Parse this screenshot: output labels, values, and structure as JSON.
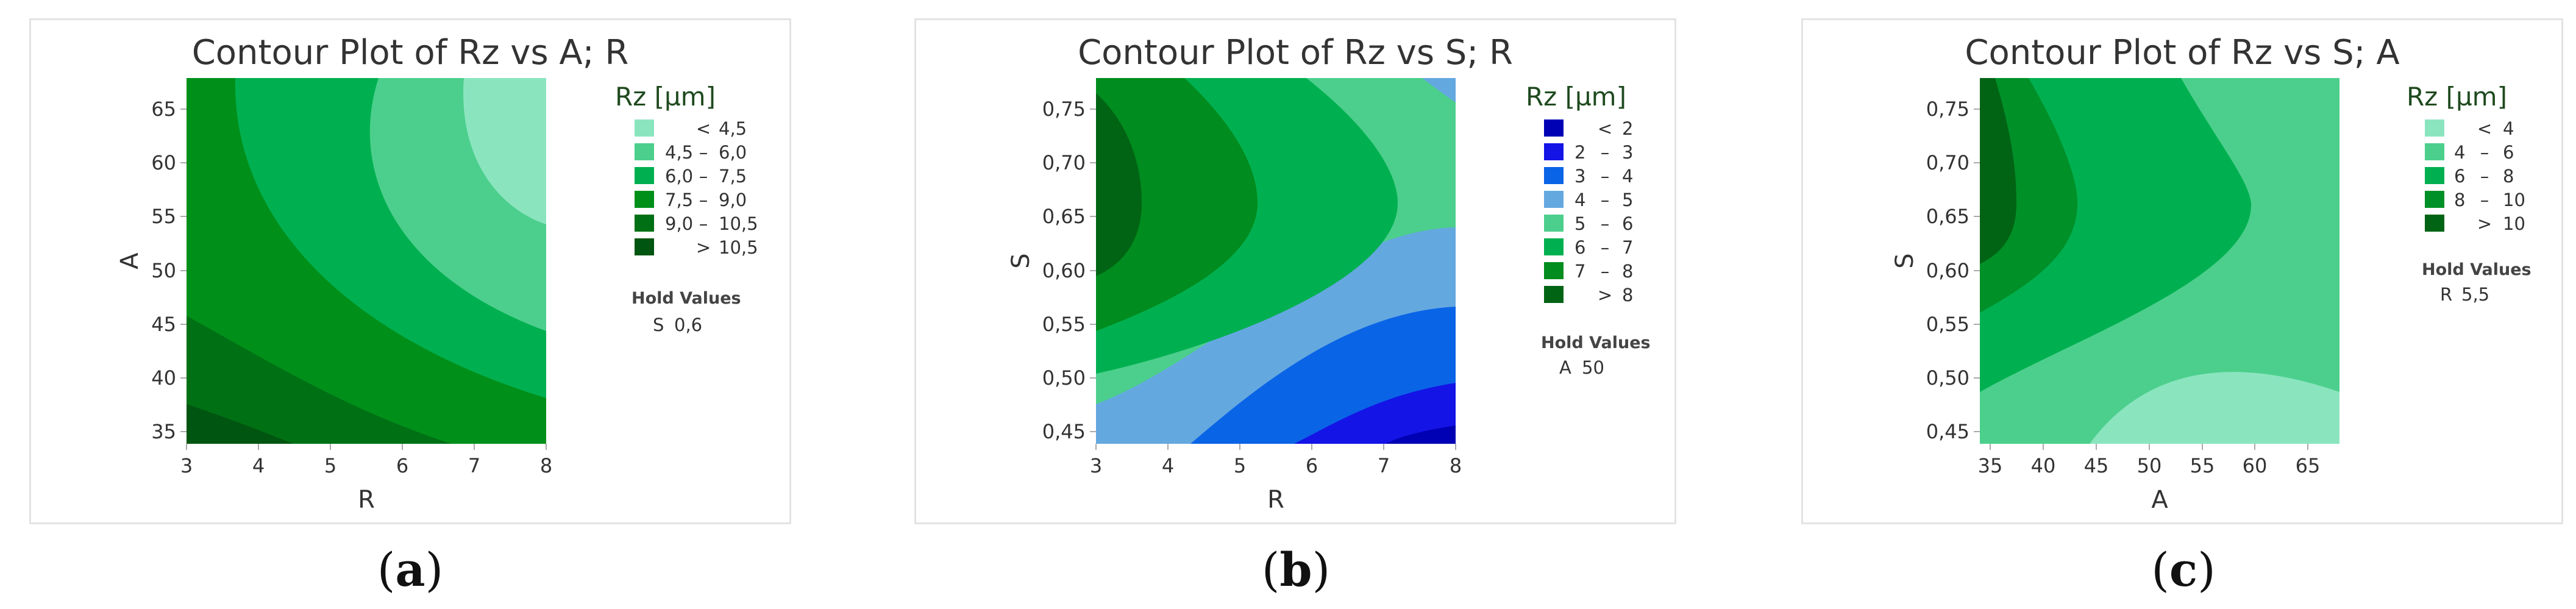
{
  "chart_data": [
    {
      "type": "contour",
      "title": "Contour Plot of Rz vs A; R",
      "xlabel": "R",
      "ylabel": "A",
      "xlim": [
        3,
        8
      ],
      "ylim": [
        33,
        67
      ],
      "xticks": [
        "3",
        "4",
        "5",
        "6",
        "7",
        "8"
      ],
      "yticks": [
        "35",
        "40",
        "45",
        "50",
        "55",
        "60",
        "65"
      ],
      "legend_title": "Rz [µm]",
      "legend": [
        {
          "op": "<",
          "lo": "",
          "hi": "4,5",
          "color": "#8ae5bf"
        },
        {
          "op": "–",
          "lo": "4,5",
          "hi": "6,0",
          "color": "#4ccf8c"
        },
        {
          "op": "–",
          "lo": "6,0",
          "hi": "7,5",
          "color": "#00b050"
        },
        {
          "op": "–",
          "lo": "7,5",
          "hi": "9,0",
          "color": "#00901a"
        },
        {
          "op": "–",
          "lo": "9,0",
          "hi": "10,5",
          "color": "#007014"
        },
        {
          "op": ">",
          "lo": "",
          "hi": "10,5",
          "color": "#005510"
        }
      ],
      "hold_title": "Hold Values",
      "hold_values": [
        {
          "name": "S",
          "value": "0,6"
        }
      ]
    },
    {
      "type": "contour",
      "title": "Contour Plot of Rz vs S; R",
      "xlabel": "R",
      "ylabel": "S",
      "xlim": [
        3,
        8
      ],
      "ylim": [
        0.43,
        0.77
      ],
      "xticks": [
        "3",
        "4",
        "5",
        "6",
        "7",
        "8"
      ],
      "yticks": [
        "0,45",
        "0,50",
        "0,55",
        "0,60",
        "0,65",
        "0,70",
        "0,75"
      ],
      "legend_title": "Rz [µm]",
      "legend": [
        {
          "op": "<",
          "lo": "",
          "hi": "2",
          "color": "#0000b4"
        },
        {
          "op": "–",
          "lo": "2",
          "hi": "3",
          "color": "#1414e6"
        },
        {
          "op": "–",
          "lo": "3",
          "hi": "4",
          "color": "#0a64e6"
        },
        {
          "op": "–",
          "lo": "4",
          "hi": "5",
          "color": "#64a8e0"
        },
        {
          "op": "–",
          "lo": "5",
          "hi": "6",
          "color": "#4ccf8c"
        },
        {
          "op": "–",
          "lo": "6",
          "hi": "7",
          "color": "#00b050"
        },
        {
          "op": "–",
          "lo": "7",
          "hi": "8",
          "color": "#008c1e"
        },
        {
          "op": ">",
          "lo": "",
          "hi": "8",
          "color": "#006414"
        }
      ],
      "hold_title": "Hold Values",
      "hold_values": [
        {
          "name": "A",
          "value": "50"
        }
      ]
    },
    {
      "type": "contour",
      "title": "Contour Plot of Rz vs S; A",
      "xlabel": "A",
      "ylabel": "S",
      "xlim": [
        33,
        67
      ],
      "ylim": [
        0.43,
        0.77
      ],
      "xticks": [
        "35",
        "40",
        "45",
        "50",
        "55",
        "60",
        "65"
      ],
      "yticks": [
        "0,45",
        "0,50",
        "0,55",
        "0,60",
        "0,65",
        "0,70",
        "0,75"
      ],
      "legend_title": "Rz [µm]",
      "legend": [
        {
          "op": "<",
          "lo": "",
          "hi": "4",
          "color": "#8ae5bf"
        },
        {
          "op": "–",
          "lo": "4",
          "hi": "6",
          "color": "#4ccf8c"
        },
        {
          "op": "–",
          "lo": "6",
          "hi": "8",
          "color": "#00b050"
        },
        {
          "op": "–",
          "lo": "8",
          "hi": "10",
          "color": "#009028"
        },
        {
          "op": ">",
          "lo": "",
          "hi": "10",
          "color": "#006414"
        }
      ],
      "hold_title": "Hold Values",
      "hold_values": [
        {
          "name": "R",
          "value": "5,5"
        }
      ]
    }
  ],
  "captions": [
    "a",
    "b",
    "c"
  ]
}
